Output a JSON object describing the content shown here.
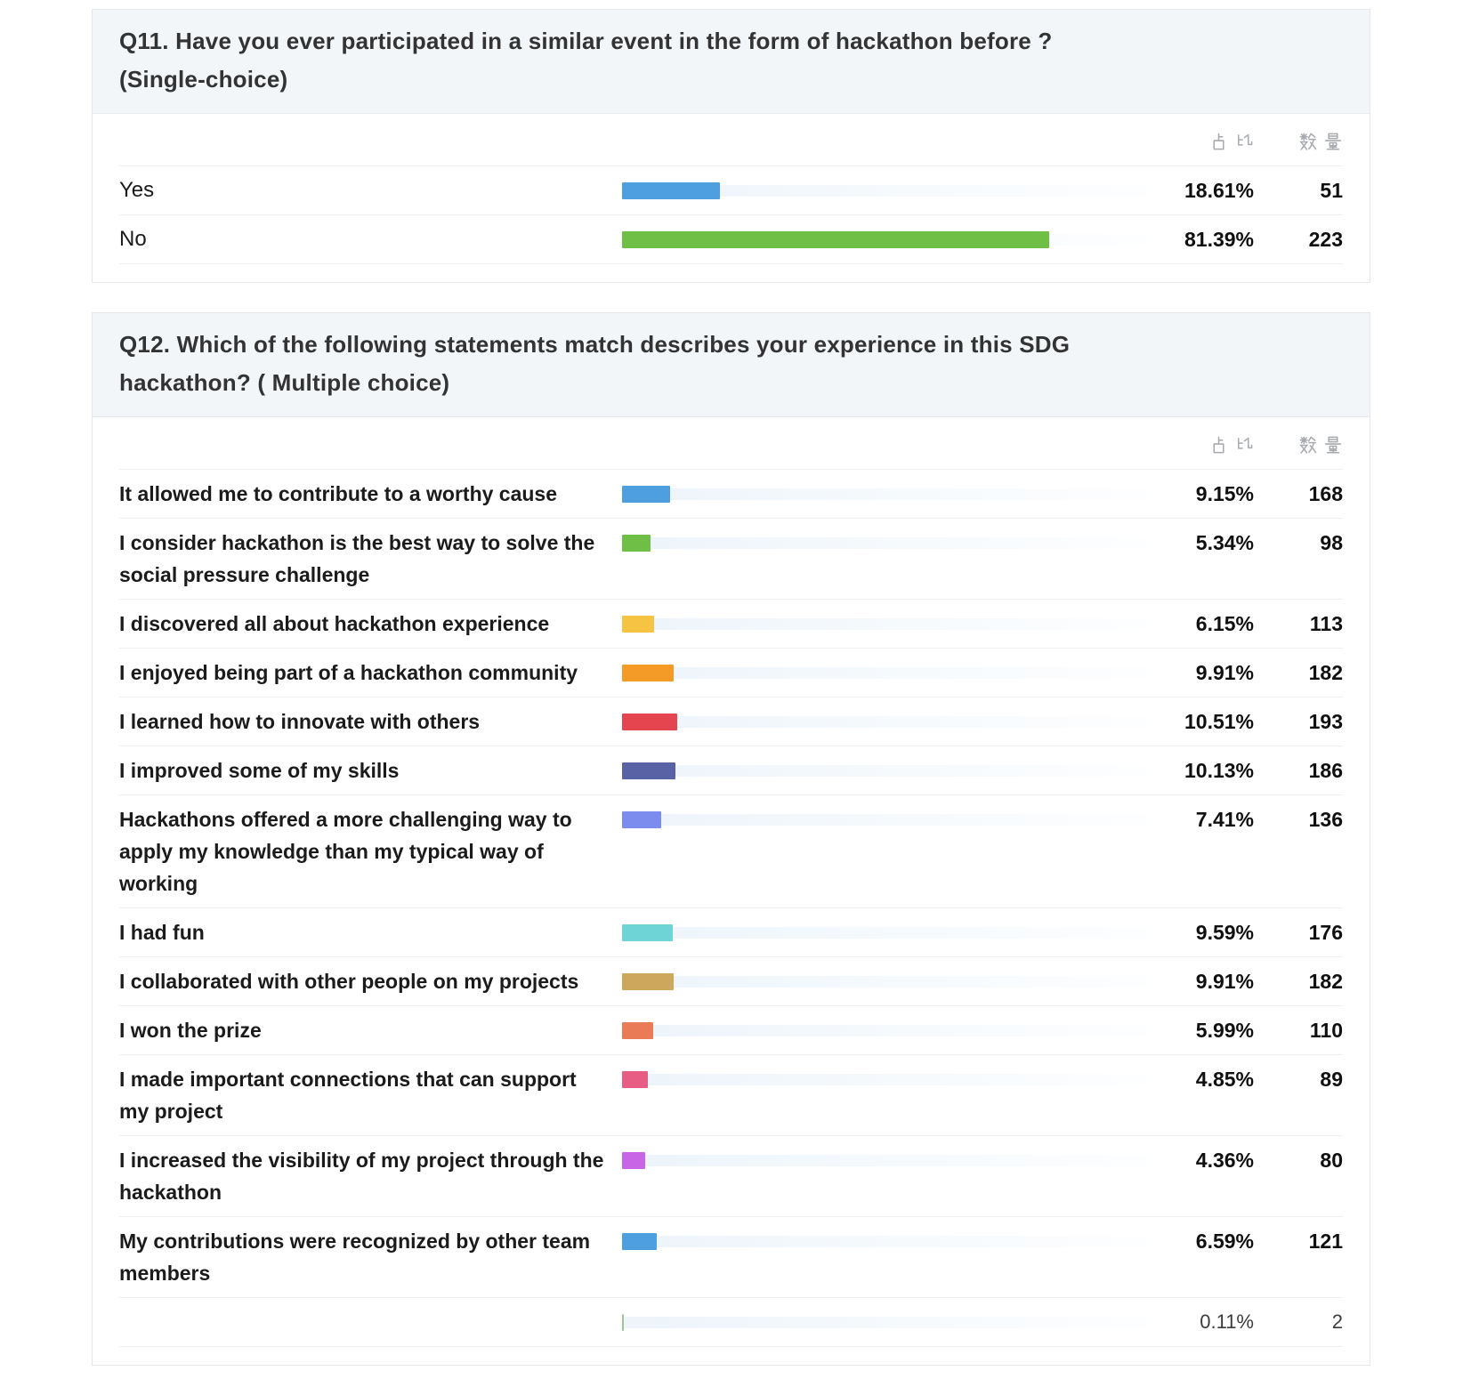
{
  "columns": {
    "percentage": "占比",
    "count": "数量"
  },
  "questions": [
    {
      "id": "q11",
      "title": "Q11. Have you ever participated in a similar event in the form of hackathon before ? (Single-choice)",
      "rows": [
        {
          "label": "Yes",
          "pct": "18.61%",
          "value": 18.61,
          "count": "51",
          "color": "#4d9fe0",
          "muted": false
        },
        {
          "label": "No",
          "pct": "81.39%",
          "value": 81.39,
          "count": "223",
          "color": "#6fbe45",
          "muted": false
        }
      ]
    },
    {
      "id": "q12",
      "title": "Q12. Which of the following statements match describes your experience in this SDG hackathon? ( Multiple choice)",
      "rows": [
        {
          "label": "It allowed me to contribute to a worthy cause",
          "pct": "9.15%",
          "value": 9.15,
          "count": "168",
          "color": "#4d9fe0",
          "muted": false
        },
        {
          "label": "I consider hackathon is the best way to solve the social pressure challenge",
          "pct": "5.34%",
          "value": 5.34,
          "count": "98",
          "color": "#6fbe45",
          "muted": false
        },
        {
          "label": "I discovered all about hackathon experience",
          "pct": "6.15%",
          "value": 6.15,
          "count": "113",
          "color": "#f6c343",
          "muted": false
        },
        {
          "label": "I enjoyed being part of a hackathon community",
          "pct": "9.91%",
          "value": 9.91,
          "count": "182",
          "color": "#f49b27",
          "muted": false
        },
        {
          "label": "I learned how to innovate with others",
          "pct": "10.51%",
          "value": 10.51,
          "count": "193",
          "color": "#e5454e",
          "muted": false
        },
        {
          "label": "I improved some of my skills",
          "pct": "10.13%",
          "value": 10.13,
          "count": "186",
          "color": "#5a62a6",
          "muted": false
        },
        {
          "label": "Hackathons offered a more challenging way to apply my knowledge than my typical way of working",
          "pct": "7.41%",
          "value": 7.41,
          "count": "136",
          "color": "#7b8bee",
          "muted": false
        },
        {
          "label": "I had fun",
          "pct": "9.59%",
          "value": 9.59,
          "count": "176",
          "color": "#6fd4d6",
          "muted": false
        },
        {
          "label": "I collaborated with other people on my projects",
          "pct": "9.91%",
          "value": 9.91,
          "count": "182",
          "color": "#cda75c",
          "muted": false
        },
        {
          "label": "I won the prize",
          "pct": "5.99%",
          "value": 5.99,
          "count": "110",
          "color": "#ea7b57",
          "muted": false
        },
        {
          "label": "I made important connections that can support my project",
          "pct": "4.85%",
          "value": 4.85,
          "count": "89",
          "color": "#e85d84",
          "muted": false
        },
        {
          "label": "I increased the visibility of my project through the hackathon",
          "pct": "4.36%",
          "value": 4.36,
          "count": "80",
          "color": "#c765e6",
          "muted": false
        },
        {
          "label": "My contributions were recognized by other team members",
          "pct": "6.59%",
          "value": 6.59,
          "count": "121",
          "color": "#4d9fe0",
          "muted": false
        },
        {
          "label": "",
          "pct": "0.11%",
          "value": 0.11,
          "count": "2",
          "color": "#9cc694",
          "muted": true
        }
      ]
    }
  ],
  "chart_data": [
    {
      "type": "bar",
      "orientation": "horizontal",
      "title": "Q11. Have you ever participated in a similar event in the form of hackathon before ? (Single-choice)",
      "categories": [
        "Yes",
        "No"
      ],
      "series": [
        {
          "name": "占比 (%)",
          "values": [
            18.61,
            81.39
          ]
        },
        {
          "name": "数量",
          "values": [
            51,
            223
          ]
        }
      ],
      "xlabel": "",
      "ylabel": "",
      "xlim": [
        0,
        100
      ],
      "grid": false,
      "legend_position": "none",
      "bar_colors": [
        "#4d9fe0",
        "#6fbe45"
      ]
    },
    {
      "type": "bar",
      "orientation": "horizontal",
      "title": "Q12. Which of the following statements match describes your experience in this SDG hackathon? ( Multiple choice)",
      "categories": [
        "It allowed me to contribute to a worthy cause",
        "I consider hackathon is the best way to solve the social pressure challenge",
        "I discovered all about hackathon experience",
        "I enjoyed being part of a hackathon community",
        "I learned how to innovate with others",
        "I improved some of my skills",
        "Hackathons offered a more challenging way to apply my knowledge than my typical way of working",
        "I had fun",
        "I collaborated with other people on my projects",
        "I won the prize",
        "I made important connections that can support my project",
        "I increased the visibility of my project through the hackathon",
        "My contributions were recognized by other team members",
        ""
      ],
      "series": [
        {
          "name": "占比 (%)",
          "values": [
            9.15,
            5.34,
            6.15,
            9.91,
            10.51,
            10.13,
            7.41,
            9.59,
            9.91,
            5.99,
            4.85,
            4.36,
            6.59,
            0.11
          ]
        },
        {
          "name": "数量",
          "values": [
            168,
            98,
            113,
            182,
            193,
            186,
            136,
            176,
            182,
            110,
            89,
            80,
            121,
            2
          ]
        }
      ],
      "xlabel": "",
      "ylabel": "",
      "xlim": [
        0,
        100
      ],
      "grid": false,
      "legend_position": "none",
      "bar_colors": [
        "#4d9fe0",
        "#6fbe45",
        "#f6c343",
        "#f49b27",
        "#e5454e",
        "#5a62a6",
        "#7b8bee",
        "#6fd4d6",
        "#cda75c",
        "#ea7b57",
        "#e85d84",
        "#c765e6",
        "#4d9fe0",
        "#9cc694"
      ]
    }
  ]
}
